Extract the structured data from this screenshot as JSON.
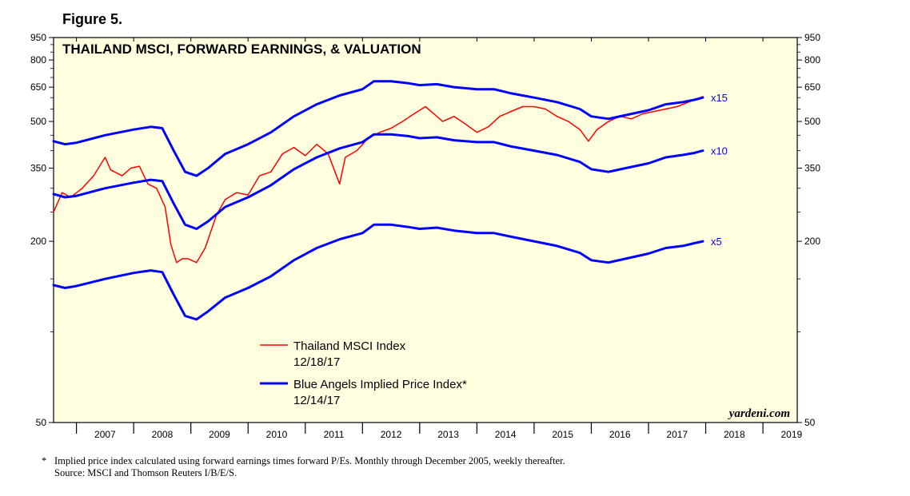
{
  "figure_label": "Figure 5.",
  "footnote": {
    "marker": "*",
    "line1": "Implied price index calculated using forward earnings times forward P/Es. Monthly through December 2005, weekly thereafter.",
    "line2": "Source: MSCI and Thomson Reuters I/B/E/S."
  },
  "colors": {
    "plot_background": "#ffffe0",
    "price_line": "#ff0000",
    "implied_line": "#0000ff",
    "axis": "#000000"
  },
  "chart_data": {
    "type": "line",
    "title": "THAILAND MSCI, FORWARD EARNINGS, & VALUATION",
    "y_scale": "log",
    "ylim": [
      50,
      950
    ],
    "xlim": [
      2006.6,
      2019.6
    ],
    "y_ticks_labeled": [
      50,
      200,
      350,
      500,
      650,
      800,
      950
    ],
    "y_ticks_minor": [
      100,
      150,
      250,
      300,
      400,
      450,
      550,
      600,
      700,
      750,
      850,
      900
    ],
    "x_tick_labels": [
      "2007",
      "2008",
      "2009",
      "2010",
      "2011",
      "2012",
      "2013",
      "2014",
      "2015",
      "2016",
      "2017",
      "2018",
      "2019"
    ],
    "watermark": "yardeni.com",
    "legend": [
      {
        "label": "Thailand MSCI Index",
        "date": "12/18/17",
        "series": "price"
      },
      {
        "label": "Blue Angels Implied Price Index*",
        "date": "12/14/17",
        "series": "implied"
      }
    ],
    "series": [
      {
        "name": "Thailand MSCI Index",
        "key": "price",
        "x": [
          2006.6,
          2006.75,
          2006.9,
          2007.1,
          2007.3,
          2007.5,
          2007.6,
          2007.8,
          2007.95,
          2008.1,
          2008.25,
          2008.4,
          2008.55,
          2008.65,
          2008.75,
          2008.85,
          2008.95,
          2009.1,
          2009.25,
          2009.45,
          2009.6,
          2009.8,
          2010.0,
          2010.2,
          2010.4,
          2010.6,
          2010.8,
          2011.0,
          2011.2,
          2011.4,
          2011.6,
          2011.7,
          2011.9,
          2012.1,
          2012.3,
          2012.5,
          2012.7,
          2012.9,
          2013.1,
          2013.3,
          2013.4,
          2013.6,
          2013.8,
          2014.0,
          2014.2,
          2014.4,
          2014.6,
          2014.8,
          2015.0,
          2015.2,
          2015.4,
          2015.6,
          2015.8,
          2015.95,
          2016.1,
          2016.3,
          2016.5,
          2016.7,
          2016.9,
          2017.1,
          2017.3,
          2017.5,
          2017.7,
          2017.8,
          2017.95
        ],
        "values": [
          250,
          290,
          280,
          300,
          330,
          380,
          345,
          330,
          350,
          355,
          310,
          300,
          260,
          195,
          170,
          175,
          175,
          170,
          190,
          245,
          275,
          290,
          285,
          330,
          340,
          390,
          410,
          385,
          420,
          390,
          310,
          380,
          400,
          440,
          460,
          475,
          500,
          530,
          560,
          520,
          500,
          520,
          490,
          460,
          480,
          520,
          540,
          560,
          560,
          550,
          520,
          500,
          470,
          430,
          470,
          500,
          520,
          510,
          530,
          540,
          550,
          560,
          580,
          590,
          605
        ]
      },
      {
        "name": "Blue Angels Implied Price Index x15",
        "key": "x15",
        "label": "x15",
        "x": [
          2006.6,
          2006.8,
          2007.0,
          2007.5,
          2008.0,
          2008.3,
          2008.5,
          2008.7,
          2008.9,
          2009.1,
          2009.3,
          2009.6,
          2010.0,
          2010.4,
          2010.8,
          2011.2,
          2011.6,
          2012.0,
          2012.2,
          2012.5,
          2012.8,
          2013.0,
          2013.3,
          2013.6,
          2014.0,
          2014.3,
          2014.6,
          2015.0,
          2015.4,
          2015.8,
          2016.0,
          2016.3,
          2016.6,
          2017.0,
          2017.3,
          2017.6,
          2017.8,
          2017.95
        ],
        "values": [
          430,
          420,
          425,
          450,
          470,
          480,
          475,
          400,
          340,
          330,
          350,
          390,
          420,
          460,
          520,
          570,
          610,
          640,
          680,
          680,
          670,
          660,
          665,
          650,
          640,
          640,
          620,
          600,
          580,
          550,
          520,
          510,
          525,
          545,
          570,
          580,
          590,
          600
        ]
      },
      {
        "name": "Blue Angels Implied Price Index x10",
        "key": "x10",
        "label": "x10",
        "x": [
          2006.6,
          2006.8,
          2007.0,
          2007.5,
          2008.0,
          2008.3,
          2008.5,
          2008.7,
          2008.9,
          2009.1,
          2009.3,
          2009.6,
          2010.0,
          2010.4,
          2010.8,
          2011.2,
          2011.6,
          2012.0,
          2012.2,
          2012.5,
          2012.8,
          2013.0,
          2013.3,
          2013.6,
          2014.0,
          2014.3,
          2014.6,
          2015.0,
          2015.4,
          2015.8,
          2016.0,
          2016.3,
          2016.6,
          2017.0,
          2017.3,
          2017.6,
          2017.8,
          2017.95
        ],
        "values": [
          287,
          280,
          283,
          300,
          313,
          320,
          317,
          267,
          227,
          220,
          233,
          260,
          280,
          307,
          347,
          380,
          407,
          427,
          453,
          453,
          447,
          440,
          443,
          433,
          427,
          427,
          413,
          400,
          387,
          367,
          347,
          340,
          350,
          363,
          380,
          387,
          393,
          400
        ]
      },
      {
        "name": "Blue Angels Implied Price Index x5",
        "key": "x5",
        "label": "x5",
        "x": [
          2006.6,
          2006.8,
          2007.0,
          2007.5,
          2008.0,
          2008.3,
          2008.5,
          2008.7,
          2008.9,
          2009.1,
          2009.3,
          2009.6,
          2010.0,
          2010.4,
          2010.8,
          2011.2,
          2011.6,
          2012.0,
          2012.2,
          2012.5,
          2012.8,
          2013.0,
          2013.3,
          2013.6,
          2014.0,
          2014.3,
          2014.6,
          2015.0,
          2015.4,
          2015.8,
          2016.0,
          2016.3,
          2016.6,
          2017.0,
          2017.3,
          2017.6,
          2017.8,
          2017.95
        ],
        "values": [
          143,
          140,
          142,
          150,
          157,
          160,
          158,
          133,
          113,
          110,
          117,
          130,
          140,
          153,
          173,
          190,
          203,
          213,
          227,
          227,
          223,
          220,
          222,
          217,
          213,
          213,
          207,
          200,
          193,
          183,
          173,
          170,
          175,
          182,
          190,
          193,
          197,
          200
        ]
      }
    ]
  }
}
